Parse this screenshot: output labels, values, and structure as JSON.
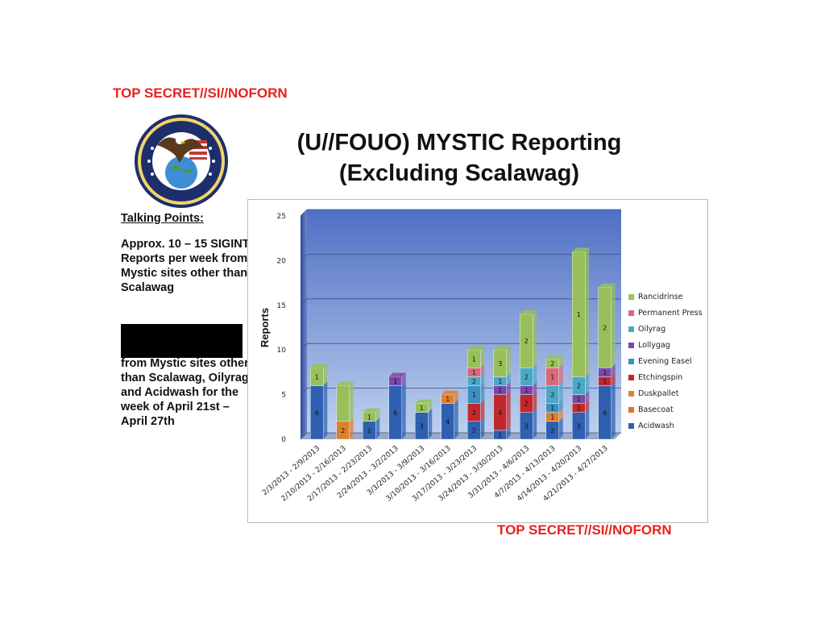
{
  "classification": {
    "top": "TOP SECRET//SI//NOFORN",
    "bottom": "TOP SECRET//SI//NOFORN"
  },
  "logo": {
    "top_text": "SPECIAL SOURCE",
    "bottom_text": "OPERATIONS"
  },
  "title": {
    "line1": "(U//FOUO) MYSTIC Reporting",
    "line2": "(Excluding Scalawag)"
  },
  "talking_points": {
    "heading": "Talking Points:",
    "bullet": "Approx. 10 – 15 SIGINT Reports per week from Mystic sites other than Scalawag",
    "after_redaction": "from Mystic sites other than Scalawag, Oilyrag, and Acidwash for the week of April 21st – April 27th"
  },
  "chart_data": {
    "type": "bar",
    "stacked": true,
    "ylabel": "Reports",
    "xlabel": "",
    "ylim": [
      0,
      25
    ],
    "yticks": [
      0,
      5,
      10,
      15,
      20,
      25
    ],
    "grid": true,
    "legend_position": "right",
    "categories": [
      "2/3/2013 - 2/9/2013",
      "2/10/2013 - 2/16/2013",
      "2/17/2013 - 2/23/2013",
      "2/24/2013 - 3/2/2013",
      "3/3/2013 - 3/9/2013",
      "3/10/2013 - 3/16/2013",
      "3/17/2013 - 3/23/2013",
      "3/24/2013 - 3/30/2013",
      "3/31/2013 - 4/6/2013",
      "4/7/2013 - 4/13/2013",
      "4/14/2013 - 4/20/2013",
      "4/21/2013 - 4/27/2013"
    ],
    "series": [
      {
        "name": "Acidwash",
        "color": "#2e5fb0",
        "values": [
          6,
          0,
          2,
          6,
          3,
          4,
          2,
          1,
          3,
          2,
          3,
          6
        ]
      },
      {
        "name": "Basecoat",
        "color": "#e0742a",
        "values": [
          0,
          0,
          0,
          0,
          0,
          0,
          0,
          0,
          0,
          0,
          0,
          0
        ]
      },
      {
        "name": "Duskpallet",
        "color": "#e07f2c",
        "values": [
          0,
          2,
          0,
          0,
          0,
          1,
          0,
          0,
          0,
          1,
          0,
          0
        ]
      },
      {
        "name": "Etchingspin",
        "color": "#c1282e",
        "values": [
          0,
          0,
          0,
          0,
          0,
          0,
          2,
          4,
          2,
          0,
          1,
          1
        ]
      },
      {
        "name": "Evening Easel",
        "color": "#3c8fc0",
        "values": [
          0,
          0,
          0,
          0,
          0,
          0,
          2,
          0,
          0,
          1,
          0,
          0
        ]
      },
      {
        "name": "Lollygag",
        "color": "#7a48a8",
        "values": [
          0,
          0,
          0,
          1,
          0,
          0,
          0,
          1,
          1,
          0,
          1,
          1
        ]
      },
      {
        "name": "Oilyrag",
        "color": "#4aa8c6",
        "values": [
          0,
          0,
          0,
          0,
          0,
          0,
          1,
          1,
          2,
          2,
          2,
          0
        ]
      },
      {
        "name": "Permanent Press",
        "color": "#d9697a",
        "values": [
          0,
          0,
          0,
          0,
          0,
          0,
          1,
          0,
          0,
          2,
          0,
          0
        ]
      },
      {
        "name": "Rancidrinse",
        "color": "#98c05a",
        "values": [
          2,
          4,
          1,
          0,
          1,
          0,
          2,
          3,
          6,
          1,
          14,
          9
        ]
      }
    ],
    "data_labels": [
      [
        6,
        1,
        1
      ],
      [
        2
      ],
      [
        2,
        1
      ],
      [
        6,
        1
      ],
      [
        3,
        1
      ],
      [
        4,
        1
      ],
      [
        2,
        2,
        1,
        2,
        1,
        1
      ],
      [
        1,
        4,
        1,
        1,
        3
      ],
      [
        3,
        2,
        1,
        2,
        2,
        5,
        1
      ],
      [
        2,
        1,
        1,
        2,
        1,
        2,
        1
      ],
      [
        3,
        1,
        1,
        2,
        1,
        14
      ],
      [
        6,
        1,
        1,
        2,
        9
      ]
    ]
  }
}
